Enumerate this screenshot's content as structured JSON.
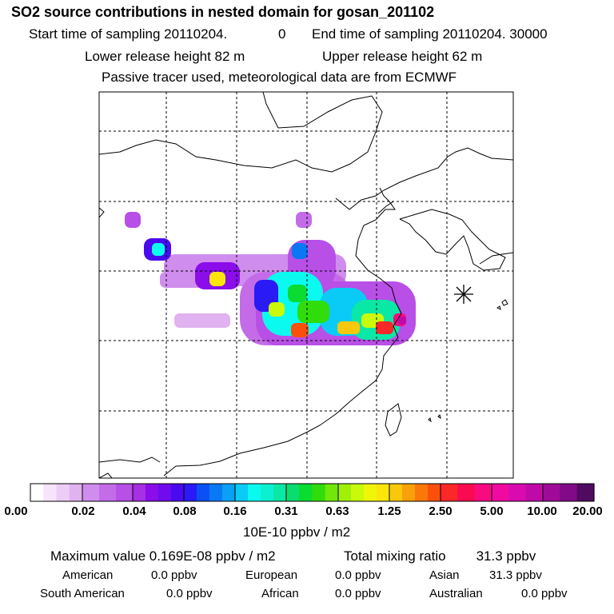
{
  "header": {
    "title": "SO2 source contributions in nested domain for gosan_201102",
    "start_time": "Start time of sampling 20110204.",
    "start_offset": "0",
    "end_time": "End time of sampling 20110204. 30000",
    "lower_release": "Lower release height   82 m",
    "upper_release": "Upper release height   62 m",
    "tracer_note": "Passive tracer used, meteorological data are from ECMWF"
  },
  "colorbar": {
    "unit_label": "10E-10 ppbv / m2",
    "ticks": [
      "0.00",
      "0.02",
      "0.04",
      "0.08",
      "0.16",
      "0.31",
      "0.63",
      "1.25",
      "2.50",
      "5.00",
      "10.00",
      "20.00"
    ],
    "colors": [
      "#ffffff",
      "#f6e4fa",
      "#eccdf6",
      "#e0b2f0",
      "#cf8ded",
      "#c46ce8",
      "#b84fe6",
      "#a72fe4",
      "#8a0dea",
      "#6f0bed",
      "#4a0af0",
      "#2a1af5",
      "#0a50f5",
      "#0a78f5",
      "#0aa0f5",
      "#0acbf5",
      "#0afaf0",
      "#0af0d0",
      "#0ae8a5",
      "#0add70",
      "#0adc30",
      "#30dd0a",
      "#70e80a",
      "#a0f00a",
      "#c8fa0a",
      "#f0f50a",
      "#fae60a",
      "#fac80a",
      "#faa00a",
      "#fa780a",
      "#fa500a",
      "#fa2828",
      "#fa0a50",
      "#fa0a80",
      "#f00aa0",
      "#d80ab0",
      "#c00aa8",
      "#a00a98",
      "#800a88",
      "#500a60"
    ],
    "swatches_per_interval": [
      4,
      3,
      4,
      4,
      4,
      4,
      4,
      4,
      3,
      3,
      3
    ]
  },
  "stats": {
    "max_label": "Maximum value  0.169E-08 ppbv / m2",
    "total_label": "Total mixing ratio",
    "total_value": "31.3 ppbv"
  },
  "regions": [
    {
      "name": "American",
      "value": "0.0 ppbv"
    },
    {
      "name": "European",
      "value": "0.0 ppbv"
    },
    {
      "name": "Asian",
      "value": "31.3 ppbv"
    },
    {
      "name": "South American",
      "value": "0.0 ppbv"
    },
    {
      "name": "African",
      "value": "0.0 ppbv"
    },
    {
      "name": "Australian",
      "value": "0.0 ppbv"
    }
  ],
  "plume": {
    "receptor_marker": "gosan",
    "blobs": [
      {
        "lon_i": 1.5,
        "lat_i": 4.2,
        "level": 8
      },
      {
        "lon_i": 2.6,
        "lat_i": 3.6,
        "level": 14
      },
      {
        "lon_i": 4.8,
        "lat_i": 3.0,
        "level": 25
      },
      {
        "lon_i": 8.5,
        "lat_i": 3.6,
        "level": 12
      },
      {
        "lon_i": 7.6,
        "lat_i": 2.4,
        "level": 20
      },
      {
        "lon_i": 8.6,
        "lat_i": 2.0,
        "level": 32
      },
      {
        "lon_i": 10.5,
        "lat_i": 1.9,
        "level": 29
      },
      {
        "lon_i": 12.3,
        "lat_i": 1.9,
        "level": 33
      },
      {
        "lon_i": 12.8,
        "lat_i": 2.2,
        "level": 36
      }
    ]
  }
}
